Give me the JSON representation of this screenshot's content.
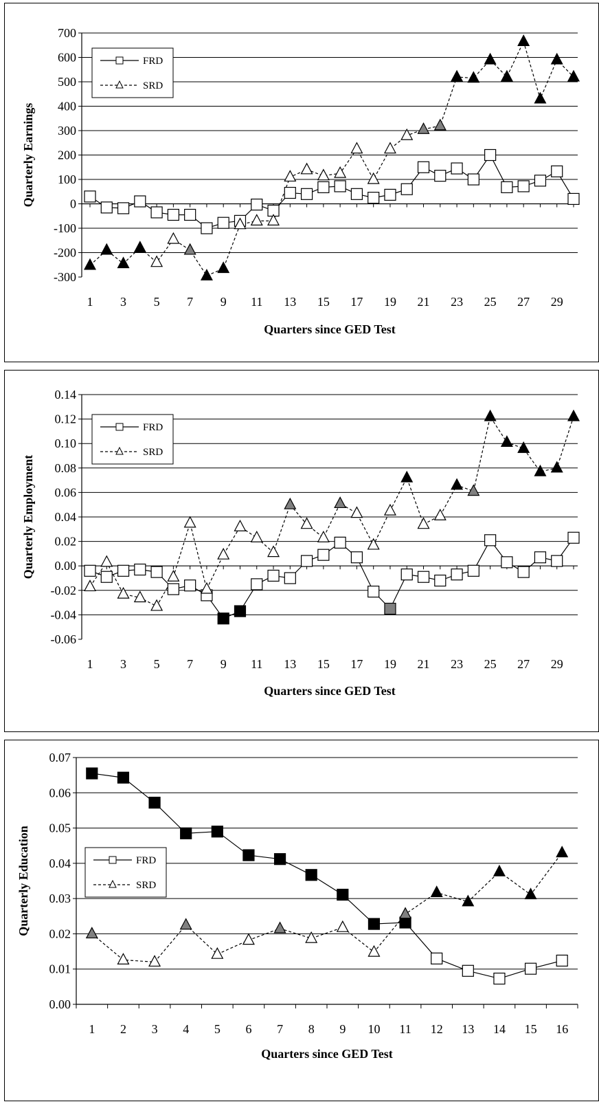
{
  "chart_data": [
    {
      "type": "line",
      "xlabel": "Quarters since GED Test",
      "ylabel": "Quarterly Earnings",
      "ylim": [
        -300,
        700
      ],
      "yticks": [
        "-300",
        "-200",
        "-100",
        "0",
        "100",
        "200",
        "300",
        "400",
        "500",
        "600",
        "700"
      ],
      "x": [
        1,
        2,
        3,
        4,
        5,
        6,
        7,
        8,
        9,
        10,
        11,
        12,
        13,
        14,
        15,
        16,
        17,
        18,
        19,
        20,
        21,
        22,
        23,
        24,
        25,
        26,
        27,
        28,
        29,
        30
      ],
      "xtick_labels": [
        "1",
        "3",
        "5",
        "7",
        "9",
        "11",
        "13",
        "15",
        "17",
        "19",
        "21",
        "23",
        "25",
        "27",
        "29"
      ],
      "grid": "horizontal",
      "legend_position": "top-left",
      "legend": [
        "FRD",
        "SRD"
      ],
      "marker_fill_meaning": {
        "open": "white",
        "grey": "#808080",
        "black": "#000000"
      },
      "series": [
        {
          "name": "FRD",
          "marker": "square",
          "line": "solid",
          "values": [
            30,
            -15,
            -18,
            10,
            -35,
            -45,
            -45,
            -100,
            -78,
            -70,
            -3,
            -28,
            45,
            40,
            68,
            72,
            40,
            25,
            37,
            60,
            150,
            115,
            145,
            100,
            200,
            68,
            72,
            95,
            133,
            20
          ],
          "fills": [
            "open",
            "open",
            "open",
            "open",
            "open",
            "open",
            "open",
            "open",
            "open",
            "open",
            "open",
            "open",
            "open",
            "open",
            "open",
            "open",
            "open",
            "open",
            "open",
            "open",
            "open",
            "open",
            "open",
            "open",
            "open",
            "open",
            "open",
            "open",
            "open",
            "open"
          ]
        },
        {
          "name": "SRD",
          "marker": "triangle",
          "line": "dashed",
          "values": [
            -252,
            -190,
            -245,
            -180,
            -240,
            -145,
            -190,
            -295,
            -265,
            -85,
            -70,
            -70,
            110,
            140,
            115,
            125,
            225,
            100,
            225,
            280,
            305,
            320,
            520,
            515,
            590,
            520,
            665,
            430,
            590,
            520
          ],
          "fills": [
            "black",
            "black",
            "black",
            "black",
            "open",
            "open",
            "grey",
            "black",
            "black",
            "open",
            "open",
            "open",
            "open",
            "open",
            "open",
            "open",
            "open",
            "open",
            "open",
            "open",
            "grey",
            "grey",
            "black",
            "black",
            "black",
            "black",
            "black",
            "black",
            "black",
            "black"
          ]
        }
      ]
    },
    {
      "type": "line",
      "xlabel": "Quarters since GED Test",
      "ylabel": "Quarterly Employment",
      "ylim": [
        -0.06,
        0.14
      ],
      "yticks": [
        "-0.06",
        "-0.04",
        "-0.02",
        "0.00",
        "0.02",
        "0.04",
        "0.06",
        "0.08",
        "0.10",
        "0.12",
        "0.14"
      ],
      "x": [
        1,
        2,
        3,
        4,
        5,
        6,
        7,
        8,
        9,
        10,
        11,
        12,
        13,
        14,
        15,
        16,
        17,
        18,
        19,
        20,
        21,
        22,
        23,
        24,
        25,
        26,
        27,
        28,
        29,
        30
      ],
      "xtick_labels": [
        "1",
        "3",
        "5",
        "7",
        "9",
        "11",
        "13",
        "15",
        "17",
        "19",
        "21",
        "23",
        "25",
        "27",
        "29"
      ],
      "grid": "horizontal",
      "legend_position": "top-left",
      "legend": [
        "FRD",
        "SRD"
      ],
      "series": [
        {
          "name": "FRD",
          "marker": "square",
          "line": "solid",
          "values": [
            -0.004,
            -0.009,
            -0.004,
            -0.003,
            -0.005,
            -0.019,
            -0.016,
            -0.024,
            -0.043,
            -0.037,
            -0.015,
            -0.008,
            -0.01,
            0.004,
            0.009,
            0.019,
            0.007,
            -0.021,
            -0.035,
            -0.007,
            -0.009,
            -0.012,
            -0.007,
            -0.004,
            0.021,
            0.003,
            -0.005,
            0.007,
            0.004,
            0.023
          ],
          "fills": [
            "open",
            "open",
            "open",
            "open",
            "open",
            "open",
            "open",
            "open",
            "black",
            "black",
            "open",
            "open",
            "open",
            "open",
            "open",
            "open",
            "open",
            "open",
            "grey",
            "open",
            "open",
            "open",
            "open",
            "open",
            "open",
            "open",
            "open",
            "open",
            "open",
            "open"
          ]
        },
        {
          "name": "SRD",
          "marker": "triangle",
          "line": "dashed",
          "values": [
            -0.017,
            0.003,
            -0.023,
            -0.026,
            -0.033,
            -0.009,
            0.035,
            -0.019,
            0.009,
            0.032,
            0.023,
            0.011,
            0.05,
            0.034,
            0.023,
            0.051,
            0.043,
            0.017,
            0.045,
            0.072,
            0.034,
            0.041,
            0.066,
            0.061,
            0.122,
            0.101,
            0.096,
            0.077,
            0.08,
            0.122
          ],
          "fills": [
            "open",
            "open",
            "open",
            "open",
            "open",
            "open",
            "open",
            "open",
            "open",
            "open",
            "open",
            "open",
            "grey",
            "open",
            "open",
            "grey",
            "open",
            "open",
            "open",
            "black",
            "open",
            "open",
            "black",
            "grey",
            "black",
            "black",
            "black",
            "black",
            "black",
            "black"
          ]
        }
      ]
    },
    {
      "type": "line",
      "xlabel": "Quarters since GED Test",
      "ylabel": "Quarterly Education",
      "ylim": [
        0,
        0.07
      ],
      "yticks": [
        "0.00",
        "0.01",
        "0.02",
        "0.03",
        "0.04",
        "0.05",
        "0.06",
        "0.07"
      ],
      "x": [
        1,
        2,
        3,
        4,
        5,
        6,
        7,
        8,
        9,
        10,
        11,
        12,
        13,
        14,
        15,
        16
      ],
      "xtick_labels": [
        "1",
        "2",
        "3",
        "4",
        "5",
        "6",
        "7",
        "8",
        "9",
        "10",
        "11",
        "12",
        "13",
        "14",
        "15",
        "16"
      ],
      "grid": "horizontal",
      "legend_position": "middle-left",
      "legend": [
        "FRD",
        "SRD"
      ],
      "series": [
        {
          "name": "FRD",
          "marker": "square",
          "line": "solid",
          "values": [
            0.0655,
            0.0643,
            0.0572,
            0.0485,
            0.049,
            0.0423,
            0.0412,
            0.0367,
            0.0311,
            0.0228,
            0.0232,
            0.013,
            0.0095,
            0.0073,
            0.0101,
            0.0124
          ],
          "fills": [
            "black",
            "black",
            "black",
            "black",
            "black",
            "black",
            "black",
            "black",
            "black",
            "black",
            "black",
            "open",
            "open",
            "open",
            "open",
            "open"
          ]
        },
        {
          "name": "SRD",
          "marker": "triangle",
          "line": "dashed",
          "values": [
            0.02,
            0.0126,
            0.012,
            0.0225,
            0.0142,
            0.0182,
            0.0215,
            0.0187,
            0.0218,
            0.0148,
            0.0256,
            0.0317,
            0.0291,
            0.0376,
            0.0311,
            0.043
          ],
          "fills": [
            "grey",
            "open",
            "open",
            "grey",
            "open",
            "open",
            "grey",
            "open",
            "open",
            "open",
            "grey",
            "black",
            "black",
            "black",
            "black",
            "black"
          ]
        }
      ]
    }
  ]
}
